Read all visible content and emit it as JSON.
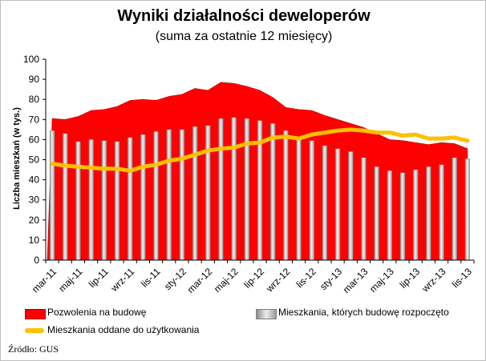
{
  "title": "Wyniki działalności deweloperów",
  "subtitle": "(suma za ostatnie 12 miesięcy)",
  "ylabel": "Liczba mieszkań (w tys.)",
  "source": "Źródło: GUS",
  "colors": {
    "permits": "#ff0000",
    "starts": "#bfbfbf",
    "completions": "#ffc000"
  },
  "chart_data": {
    "type": "bar",
    "title": "Wyniki działalności deweloperów",
    "subtitle": "(suma za ostatnie 12 miesięcy)",
    "ylabel": "Liczba mieszkań (w tys.)",
    "xlabel": "",
    "ylim": [
      0,
      100
    ],
    "yticks": [
      0,
      10,
      20,
      30,
      40,
      50,
      60,
      70,
      80,
      90,
      100
    ],
    "grid": false,
    "legend_position": "bottom",
    "categories": [
      "mar-11",
      "kwi-11",
      "maj-11",
      "cze-11",
      "lip-11",
      "sie-11",
      "wrz-11",
      "paź-11",
      "lis-11",
      "gru-11",
      "sty-12",
      "lut-12",
      "mar-12",
      "kwi-12",
      "maj-12",
      "cze-12",
      "lip-12",
      "sie-12",
      "wrz-12",
      "paź-12",
      "lis-12",
      "gru-12",
      "sty-13",
      "lut-13",
      "mar-13",
      "kwi-13",
      "maj-13",
      "cze-13",
      "lip-13",
      "sie-13",
      "wrz-13",
      "paź-13",
      "lis-13"
    ],
    "tick_labels": [
      "mar-11",
      "maj-11",
      "lip-11",
      "wrz-11",
      "lis-11",
      "sty-12",
      "mar-12",
      "maj-12",
      "lip-12",
      "wrz-12",
      "lis-12",
      "sty-13",
      "mar-13",
      "maj-13",
      "lip-13",
      "wrz-13",
      "lis-13"
    ],
    "series": [
      {
        "name": "Pozwolenia na budowę",
        "type": "area",
        "values": [
          70.5,
          70,
          71.5,
          74.5,
          75,
          76.5,
          79.5,
          80,
          79.5,
          81.5,
          82.5,
          85.5,
          84.5,
          88.5,
          88,
          86.5,
          84.5,
          81,
          76,
          75,
          74.5,
          72,
          70,
          68,
          66,
          63,
          60,
          59.5,
          58.5,
          57.5,
          58.5,
          58,
          55.5
        ]
      },
      {
        "name": "Mieszkania, których budowę rozpoczęto",
        "type": "bar",
        "values": [
          64.5,
          63,
          59,
          60,
          59.5,
          59,
          61,
          62.5,
          64,
          65,
          65,
          66.5,
          67,
          70.5,
          71,
          70.5,
          69.5,
          68,
          64.5,
          60,
          59.5,
          57,
          55.5,
          54,
          51,
          46.5,
          44.5,
          43.5,
          45,
          46.5,
          47.5,
          51,
          50.5
        ]
      },
      {
        "name": "Mieszkania oddane do użytkowania",
        "type": "line",
        "values": [
          48,
          47,
          46.5,
          46,
          45.5,
          45.5,
          44.5,
          46.5,
          47.5,
          49.5,
          50.5,
          52.5,
          54.5,
          55.5,
          56,
          58,
          58.5,
          61,
          61.5,
          60.5,
          62.5,
          63.5,
          64.5,
          65,
          64.5,
          63.5,
          63.5,
          62,
          62.5,
          60.5,
          60.5,
          61,
          59.5
        ]
      }
    ]
  }
}
